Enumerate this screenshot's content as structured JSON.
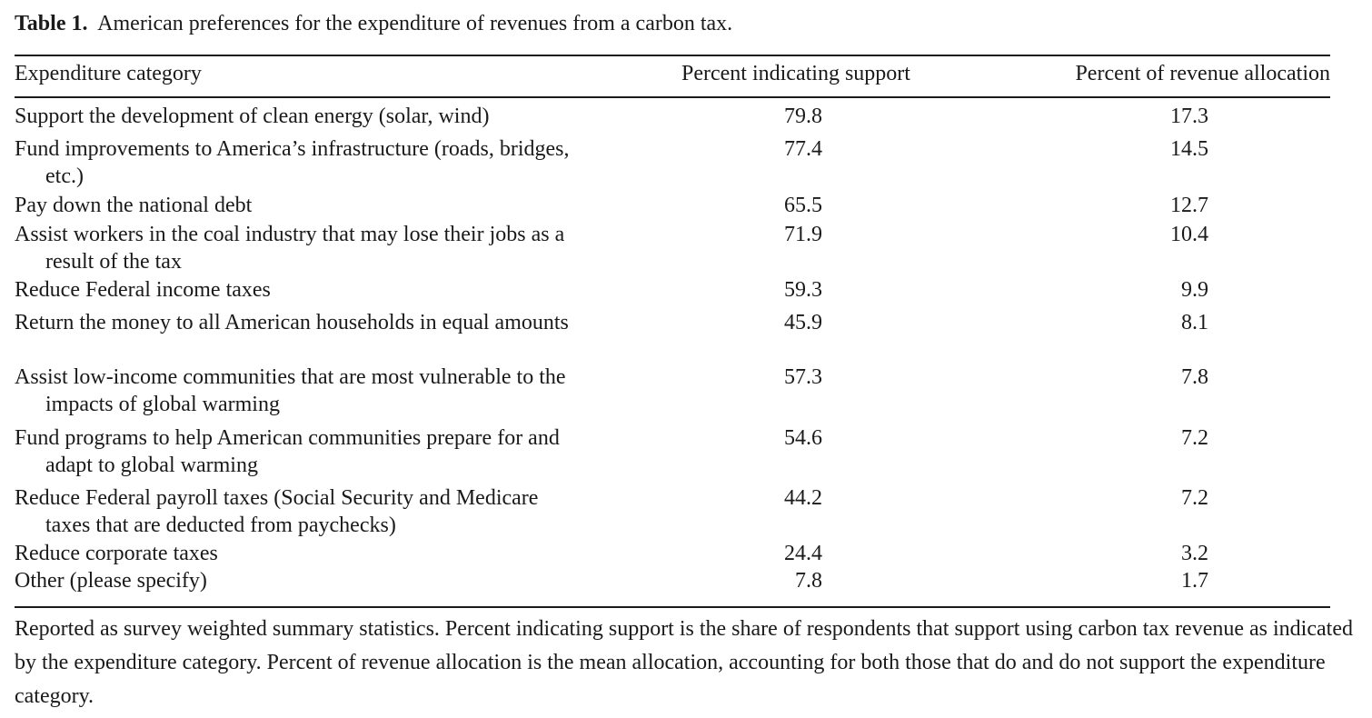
{
  "caption": {
    "label": "Table 1.",
    "text": "American preferences for the expenditure of revenues from a carbon tax."
  },
  "columns": {
    "category": "Expenditure category",
    "support": "Percent indicating support",
    "allocation": "Percent of revenue allocation"
  },
  "rows": [
    {
      "category": "Support the development of clean energy (solar, wind)",
      "support": "79.8",
      "allocation": "17.3"
    },
    {
      "category": "Fund improvements to America’s infrastructure (roads, bridges, etc.)",
      "support": "77.4",
      "allocation": "14.5"
    },
    {
      "category": "Pay down the national debt",
      "support": "65.5",
      "allocation": "12.7"
    },
    {
      "category": "Assist workers in the coal industry that may lose their jobs as a result of the tax",
      "support": "71.9",
      "allocation": "10.4"
    },
    {
      "category": "Reduce Federal income taxes",
      "support": "59.3",
      "allocation": "9.9"
    },
    {
      "category": "Return the money to all American households in equal amounts",
      "support": "45.9",
      "allocation": "8.1"
    },
    {
      "category": "Assist low-income communities that are most vulnerable to the impacts of global warming",
      "support": "57.3",
      "allocation": "7.8"
    },
    {
      "category": "Fund programs to help American communities prepare for and adapt to global warming",
      "support": "54.6",
      "allocation": "7.2"
    },
    {
      "category": "Reduce Federal payroll taxes (Social Security and Medicare taxes that are deducted from paychecks)",
      "support": "44.2",
      "allocation": "7.2"
    },
    {
      "category": "Reduce corporate taxes",
      "support": "24.4",
      "allocation": "3.2"
    },
    {
      "category": "Other (please specify)",
      "support": "7.8",
      "allocation": "1.7"
    }
  ],
  "note": "Reported as survey weighted summary statistics. Percent indicating support is the share of respondents that support using carbon tax revenue as indicated by the expenditure category. Percent of revenue allocation is the mean allocation, accounting for both those that do and do not support the expenditure category."
}
